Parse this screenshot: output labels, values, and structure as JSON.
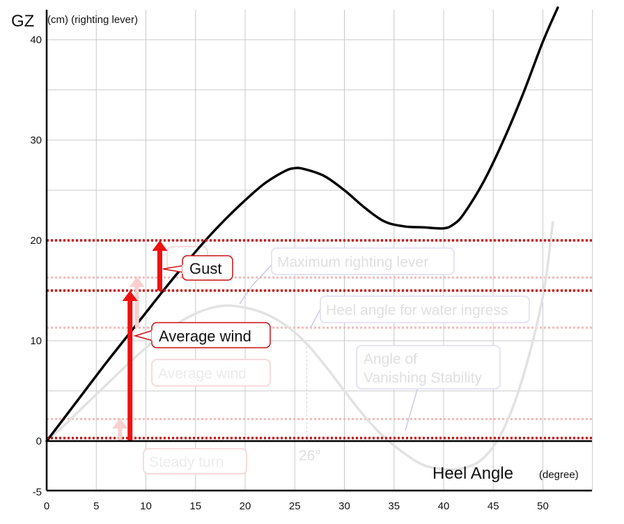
{
  "chart_data": {
    "type": "line",
    "title": "",
    "ylabel_main": "GZ",
    "ylabel_sub": "(cm) (righting lever)",
    "xlabel_main": "Heel Angle",
    "xlabel_sub": "(degree)",
    "xlim": [
      0,
      55
    ],
    "ylim": [
      -5,
      42
    ],
    "x_ticks": [
      0,
      5,
      10,
      15,
      20,
      25,
      30,
      35,
      40,
      45,
      50
    ],
    "y_ticks": [
      -5,
      0,
      10,
      20,
      30,
      40
    ],
    "grid": true,
    "series": [
      {
        "color": "#000000",
        "x": [
          0,
          2,
          4,
          6,
          8,
          10,
          12,
          14,
          16,
          18,
          20,
          22,
          24,
          25,
          26,
          28,
          30,
          32,
          34,
          36,
          38,
          40,
          41,
          42,
          44,
          46,
          48,
          50,
          51.5
        ],
        "y": [
          0,
          2.6,
          5.2,
          7.8,
          10.3,
          12.8,
          15.3,
          17.7,
          20.0,
          22.1,
          24.0,
          25.7,
          26.9,
          27.2,
          27.1,
          26.4,
          25.0,
          23.3,
          21.9,
          21.4,
          21.3,
          21.2,
          21.6,
          22.6,
          25.8,
          29.9,
          34.6,
          39.8,
          43.2
        ]
      },
      {
        "color": "#e2e2e2",
        "x": [
          0,
          2,
          4,
          6,
          8,
          10,
          12,
          14,
          16,
          18,
          20,
          22,
          24,
          26,
          28,
          30,
          32,
          34,
          36,
          38,
          40,
          42,
          44,
          46,
          48,
          50,
          51
        ],
        "y": [
          0,
          1.8,
          3.7,
          5.6,
          7.5,
          9.3,
          10.9,
          12.2,
          13.1,
          13.5,
          13.3,
          12.7,
          11.6,
          9.9,
          7.6,
          5.0,
          2.5,
          0.4,
          -1.2,
          -2.4,
          -2.8,
          -2.7,
          -1.7,
          1.1,
          6.4,
          14.4,
          21.8
        ]
      }
    ],
    "threshold_lines": [
      {
        "y": 20,
        "color": "#cc1111"
      },
      {
        "y": 15,
        "color": "#cc1111"
      },
      {
        "y": 0.3,
        "color": "#cc1111"
      },
      {
        "y": 16.3,
        "color": "#f6b9b9"
      },
      {
        "y": 11.3,
        "color": "#f6b9b9"
      },
      {
        "y": 2.2,
        "color": "#f6b9b9"
      }
    ],
    "arrows": [
      {
        "x": 8.4,
        "y_from": 0,
        "y_to": 15.0,
        "color": "#ee1111"
      },
      {
        "x": 11.4,
        "y_from": 15.0,
        "y_to": 20.0,
        "color": "#ee1111"
      },
      {
        "x": 9.1,
        "y_from": 11.3,
        "y_to": 16.4,
        "color": "#f9cfcf"
      },
      {
        "x": 7.4,
        "y_from": 0,
        "y_to": 2.3,
        "color": "#f9cfcf"
      }
    ],
    "annotations": {
      "gust": {
        "text": "Gust"
      },
      "average_wind": {
        "text": "Average wind"
      },
      "ghost_maximum_righting_lever": {
        "text": "Maximum righting lever"
      },
      "ghost_heel_angle_water_ingress": {
        "text": "Heel angle for water ingress"
      },
      "ghost_angle_of_vanishing_stability_line1": {
        "text": "Angle of"
      },
      "ghost_angle_of_vanishing_stability_line2": {
        "text": "Vanishing Stability"
      },
      "ghost_average_wind": {
        "text": "Average wind"
      },
      "ghost_steady_turn": {
        "text": "Steady turn"
      },
      "ghost_angle_marker": {
        "text": "26°"
      }
    },
    "colors": {
      "main_curve": "#000000",
      "ghost_curve": "#e2e2e2",
      "threshold_strong": "#cc1111",
      "threshold_faint": "#f6b9b9",
      "arrow_strong": "#ee1111",
      "arrow_faint": "#f9cfcf",
      "callout_border": "#cc1111",
      "ghost_callout_blue": "#dcdcf4",
      "ghost_callout_red": "#f6cfcf",
      "grid": "#c8c8c8"
    }
  }
}
